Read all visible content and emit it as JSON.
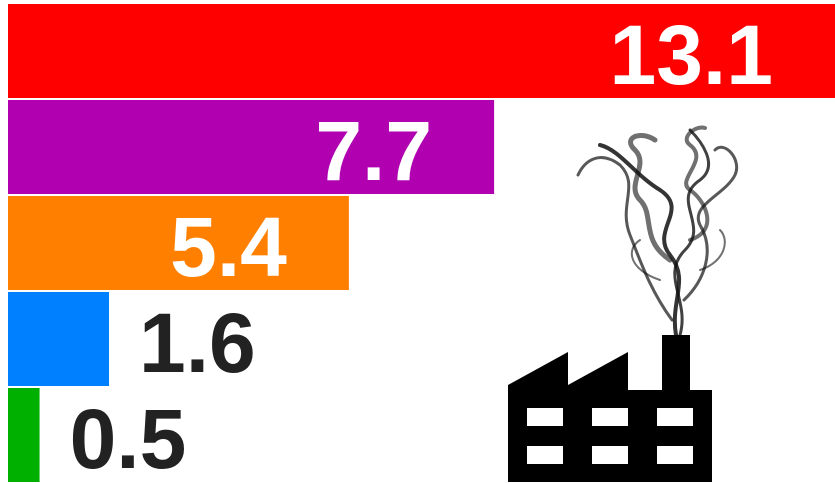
{
  "chart_data": {
    "type": "bar",
    "orientation": "horizontal",
    "values": [
      13.1,
      7.7,
      5.4,
      1.6,
      0.5
    ],
    "colors": [
      "#ff0000",
      "#b000b0",
      "#ff8000",
      "#0080ff",
      "#00b000"
    ]
  }
}
